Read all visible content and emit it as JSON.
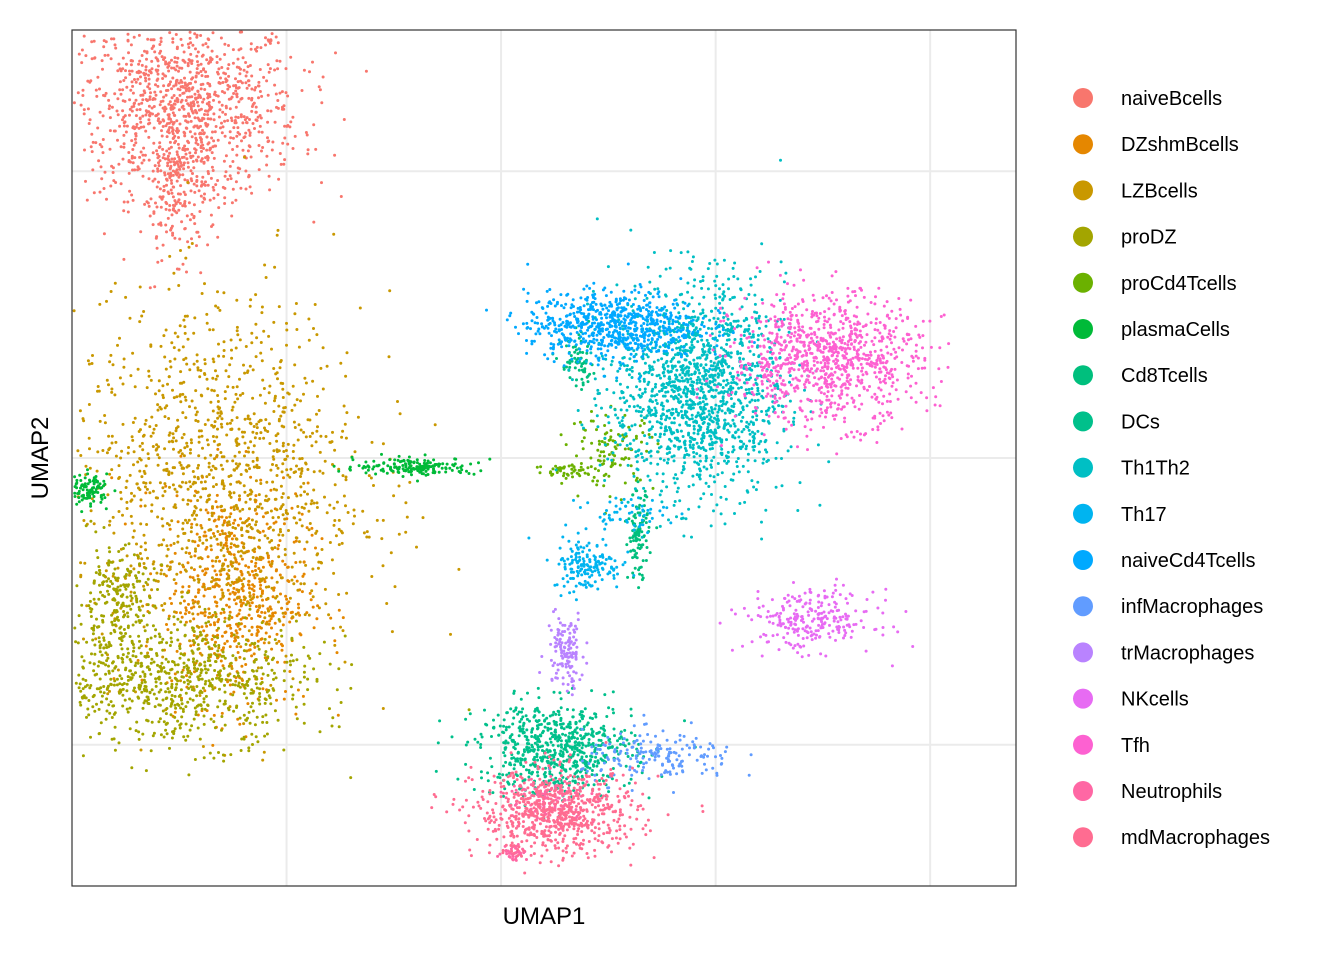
{
  "chart_data": {
    "type": "scatter",
    "title": "",
    "xlabel": "UMAP1",
    "ylabel": "UMAP2",
    "xlim": [
      -8,
      14
    ],
    "ylim": [
      -10,
      10
    ],
    "grid": true,
    "axis_ticks": false,
    "legend_position": "right",
    "series": [
      {
        "name": "naiveBcells",
        "color": "#F8766D",
        "clusters": [
          {
            "cx": -5.4,
            "cy": 8.2,
            "sx": 1.35,
            "sy": 1.05,
            "n": 1100
          },
          {
            "cx": -5.5,
            "cy": 6.2,
            "sx": 0.45,
            "sy": 0.75,
            "n": 200
          }
        ]
      },
      {
        "name": "DZshmBcells",
        "color": "#E58700",
        "clusters": [
          {
            "cx": -4.2,
            "cy": -3.2,
            "sx": 0.85,
            "sy": 1.3,
            "n": 600
          }
        ]
      },
      {
        "name": "LZBcells",
        "color": "#C99800",
        "clusters": [
          {
            "cx": -4.6,
            "cy": -0.5,
            "sx": 1.7,
            "sy": 2.1,
            "n": 1300
          }
        ]
      },
      {
        "name": "proDZ",
        "color": "#A3A500",
        "clusters": [
          {
            "cx": -5.6,
            "cy": -5.2,
            "sx": 1.6,
            "sy": 0.75,
            "n": 800
          },
          {
            "cx": -7.0,
            "cy": -3.3,
            "sx": 0.45,
            "sy": 0.6,
            "n": 200
          }
        ]
      },
      {
        "name": "proCd4Tcells",
        "color": "#6BB100",
        "clusters": [
          {
            "cx": 4.6,
            "cy": 0.2,
            "sx": 0.5,
            "sy": 0.45,
            "n": 110
          },
          {
            "cx": 3.6,
            "cy": -0.3,
            "sx": 0.4,
            "sy": 0.1,
            "n": 50
          }
        ]
      },
      {
        "name": "plasmaCells",
        "color": "#00BA38",
        "clusters": [
          {
            "cx": 0.0,
            "cy": -0.2,
            "sx": 0.7,
            "sy": 0.1,
            "n": 170
          },
          {
            "cx": -7.6,
            "cy": -0.75,
            "sx": 0.22,
            "sy": 0.18,
            "n": 110
          }
        ]
      },
      {
        "name": "Cd8Tcells",
        "color": "#00BF7D",
        "clusters": [
          {
            "cx": 5.2,
            "cy": -1.8,
            "sx": 0.12,
            "sy": 0.5,
            "n": 110
          },
          {
            "cx": 3.8,
            "cy": 2.2,
            "sx": 0.2,
            "sy": 0.3,
            "n": 70
          }
        ]
      },
      {
        "name": "DCs",
        "color": "#00C08B",
        "clusters": [
          {
            "cx": 3.3,
            "cy": -6.8,
            "sx": 0.9,
            "sy": 0.55,
            "n": 700
          }
        ]
      },
      {
        "name": "Th1Th2",
        "color": "#00BFC4",
        "clusters": [
          {
            "cx": 6.6,
            "cy": 1.6,
            "sx": 1.0,
            "sy": 1.25,
            "n": 1500
          }
        ]
      },
      {
        "name": "Th17",
        "color": "#00B4F0",
        "clusters": [
          {
            "cx": 4.0,
            "cy": -2.5,
            "sx": 0.4,
            "sy": 0.3,
            "n": 160
          },
          {
            "cx": 4.9,
            "cy": -1.3,
            "sx": 0.5,
            "sy": 0.2,
            "n": 60
          }
        ]
      },
      {
        "name": "naiveCd4Tcells",
        "color": "#00A9FF",
        "clusters": [
          {
            "cx": 4.6,
            "cy": 3.1,
            "sx": 1.0,
            "sy": 0.4,
            "n": 700
          }
        ]
      },
      {
        "name": "infMacrophages",
        "color": "#619CFF",
        "clusters": [
          {
            "cx": 5.7,
            "cy": -7.0,
            "sx": 0.9,
            "sy": 0.3,
            "n": 180
          }
        ]
      },
      {
        "name": "trMacrophages",
        "color": "#B983FF",
        "clusters": [
          {
            "cx": 3.5,
            "cy": -4.5,
            "sx": 0.22,
            "sy": 0.45,
            "n": 130
          }
        ]
      },
      {
        "name": "NKcells",
        "color": "#E76BF3",
        "clusters": [
          {
            "cx": 9.2,
            "cy": -3.8,
            "sx": 0.75,
            "sy": 0.35,
            "n": 260
          }
        ]
      },
      {
        "name": "Tfh",
        "color": "#FD61D1",
        "clusters": [
          {
            "cx": 9.6,
            "cy": 2.3,
            "sx": 1.1,
            "sy": 0.75,
            "n": 950
          }
        ]
      },
      {
        "name": "Neutrophils",
        "color": "#FF67A4",
        "clusters": [
          {
            "cx": 3.2,
            "cy": -8.0,
            "sx": 0.5,
            "sy": 0.25,
            "n": 120
          },
          {
            "cx": 2.3,
            "cy": -9.2,
            "sx": 0.15,
            "sy": 0.1,
            "n": 40
          }
        ]
      },
      {
        "name": "mdMacrophages",
        "color": "#FF6C91",
        "clusters": [
          {
            "cx": 3.3,
            "cy": -8.3,
            "sx": 0.95,
            "sy": 0.5,
            "n": 700
          }
        ]
      }
    ]
  }
}
